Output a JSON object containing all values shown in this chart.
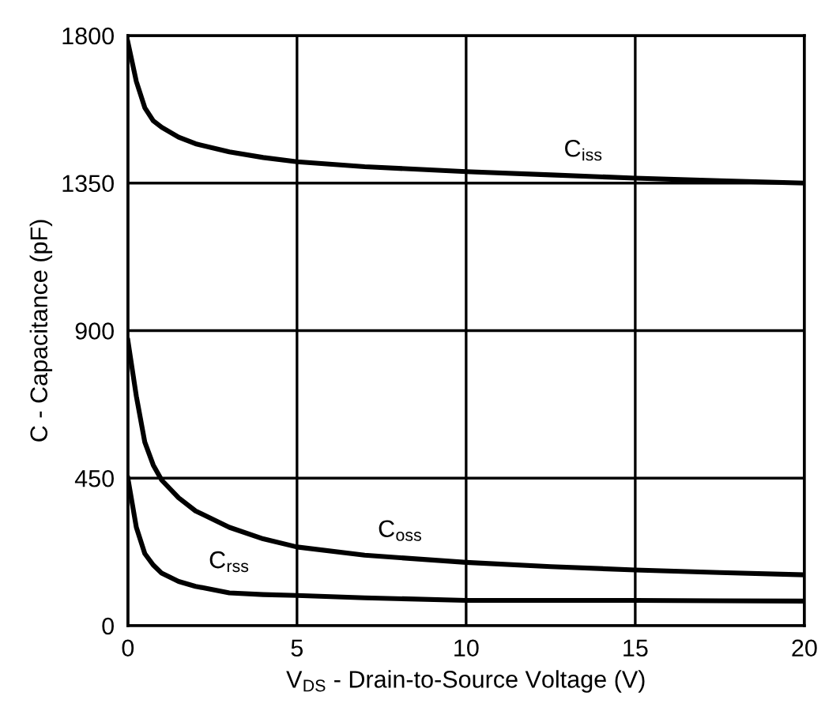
{
  "chart_data": {
    "type": "line",
    "xlabel": "V$_{DS}$ - Drain-to-Source Voltage (V)",
    "ylabel": "C - Capacitance (pF)",
    "xlim": [
      0,
      20
    ],
    "ylim": [
      0,
      1800
    ],
    "xticks": [
      0,
      5,
      10,
      15,
      20
    ],
    "yticks": [
      0,
      450,
      900,
      1350,
      1800
    ],
    "grid": true,
    "marker": "none",
    "line_style": "solid",
    "series": [
      {
        "color": "#000000",
        "x": [
          0,
          0.25,
          0.5,
          0.75,
          1,
          1.5,
          2,
          3,
          4,
          5,
          7,
          10,
          12.5,
          15,
          17.5,
          20
        ],
        "values": [
          1780,
          1660,
          1580,
          1540,
          1520,
          1490,
          1470,
          1445,
          1428,
          1415,
          1400,
          1385,
          1375,
          1365,
          1357,
          1350
        ]
      },
      {
        "color": "#000000",
        "x": [
          0,
          0.25,
          0.5,
          0.75,
          1,
          1.5,
          2,
          3,
          4,
          5,
          7,
          10,
          12.5,
          15,
          17.5,
          20
        ],
        "values": [
          870,
          700,
          560,
          490,
          444,
          390,
          350,
          300,
          265,
          240,
          215,
          193,
          180,
          170,
          162,
          155
        ]
      },
      {
        "color": "#000000",
        "x": [
          0,
          0.25,
          0.5,
          0.75,
          1,
          1.5,
          2,
          3,
          4,
          5,
          7,
          10,
          12.5,
          15,
          17.5,
          20
        ],
        "values": [
          450,
          300,
          220,
          185,
          160,
          135,
          120,
          100,
          95,
          92,
          85,
          77,
          77,
          77,
          76,
          75
        ]
      }
    ],
    "annotations": [
      {
        "text": "C$_{iss}$",
        "x": 12.5,
        "y": 1375
      },
      {
        "text": "C$_{oss}$",
        "x": 7,
        "y": 215
      },
      {
        "text": "C$_{rss}$",
        "x": 2,
        "y": 120
      }
    ]
  }
}
